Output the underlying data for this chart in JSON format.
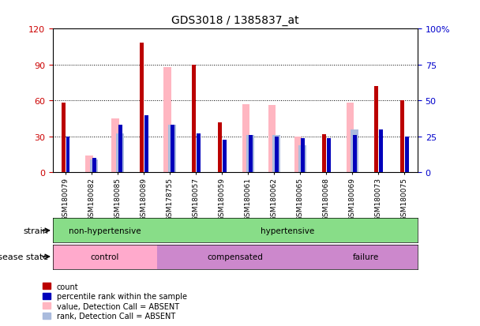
{
  "title": "GDS3018 / 1385837_at",
  "samples": [
    "GSM180079",
    "GSM180082",
    "GSM180085",
    "GSM180089",
    "GSM178755",
    "GSM180057",
    "GSM180059",
    "GSM180061",
    "GSM180062",
    "GSM180065",
    "GSM180068",
    "GSM180069",
    "GSM180073",
    "GSM180075"
  ],
  "count": [
    58,
    0,
    0,
    108,
    0,
    90,
    42,
    0,
    0,
    0,
    32,
    0,
    72,
    60
  ],
  "percentile": [
    25,
    10,
    33,
    40,
    33,
    27,
    23,
    26,
    25,
    24,
    24,
    26,
    30,
    25
  ],
  "value_absent": [
    0,
    14,
    45,
    0,
    88,
    0,
    0,
    57,
    56,
    30,
    0,
    58,
    0,
    0
  ],
  "rank_absent": [
    0,
    9,
    27,
    0,
    33,
    0,
    0,
    26,
    26,
    19,
    0,
    30,
    0,
    0
  ],
  "ylim_left": [
    0,
    120
  ],
  "ylim_right": [
    0,
    100
  ],
  "yticks_left": [
    0,
    30,
    60,
    90,
    120
  ],
  "yticks_right": [
    0,
    25,
    50,
    75,
    100
  ],
  "ytick_labels_right": [
    "0",
    "25",
    "50",
    "75",
    "100%"
  ],
  "count_color": "#BB0000",
  "percentile_color": "#0000BB",
  "value_absent_color": "#FFB6C1",
  "rank_absent_color": "#AABBDD",
  "strain_groups": [
    {
      "label": "non-hypertensive",
      "start": 0,
      "end": 4,
      "color": "#88DD88"
    },
    {
      "label": "hypertensive",
      "start": 4,
      "end": 14,
      "color": "#88DD88"
    }
  ],
  "disease_groups": [
    {
      "label": "control",
      "start": 0,
      "end": 4,
      "color": "#FFAACC"
    },
    {
      "label": "compensated",
      "start": 4,
      "end": 10,
      "color": "#CC88CC"
    },
    {
      "label": "failure",
      "start": 10,
      "end": 14,
      "color": "#CC88CC"
    }
  ],
  "bg_color": "#FFFFFF",
  "label_color_left": "#CC0000",
  "label_color_right": "#0000CC",
  "gridline_yticks": [
    30,
    60,
    90
  ]
}
